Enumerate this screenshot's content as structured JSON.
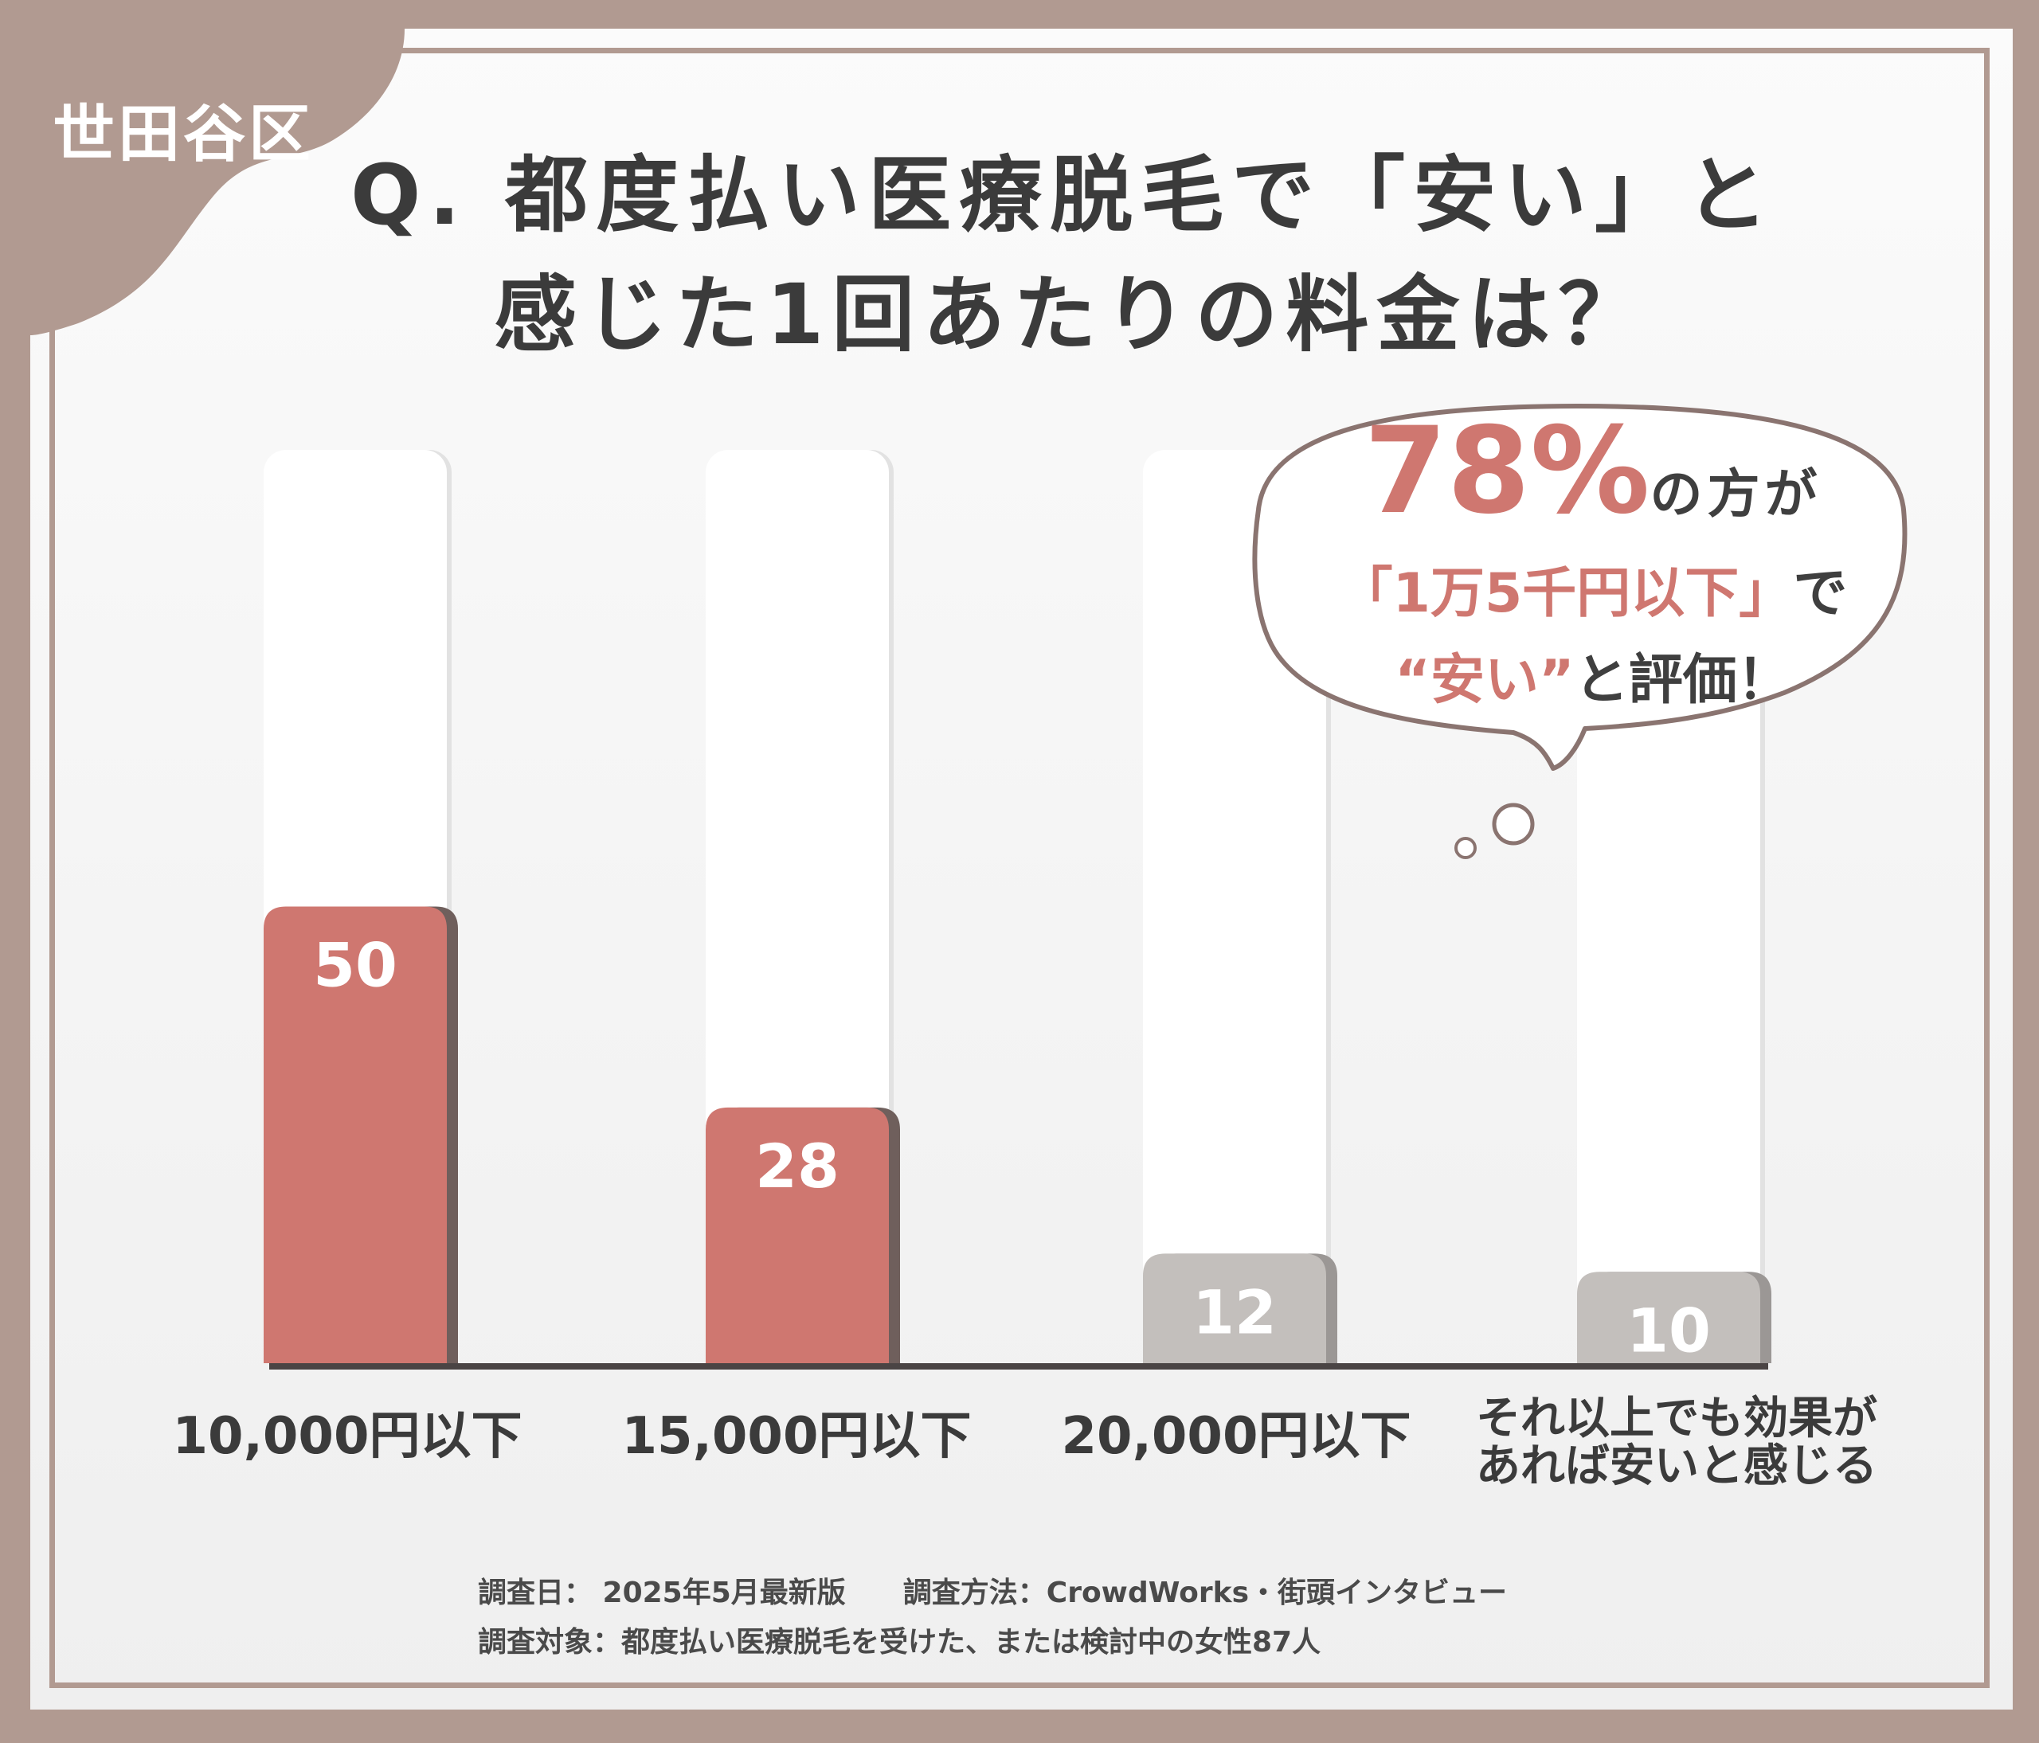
{
  "area_label": "世田谷区",
  "title": {
    "line1": "Q. 都度払い医療脱毛で「安い」と",
    "line2": "感じた1回あたりの料金は？"
  },
  "callout": {
    "pct": "78%",
    "pct_suffix": "の方が",
    "line2_accent": "「1万5千円以下」",
    "line2_rest": "で",
    "line3_accent": "“安い”",
    "line3_rest": "と評価！"
  },
  "colors": {
    "frame": "#b19a91",
    "highlight_bar": "#cf7770",
    "muted_bar": "#c3bfbc",
    "text": "#3b3b3b"
  },
  "chart_data": {
    "type": "bar",
    "categories": [
      "10,000円以下",
      "15,000円以下",
      "20,000円以下",
      "それ以上でも効果が あれば安いと感じる"
    ],
    "category_lines": [
      [
        "10,000円以下"
      ],
      [
        "15,000円以下"
      ],
      [
        "20,000円以下"
      ],
      [
        "それ以上でも効果が",
        "あれば安いと感じる"
      ]
    ],
    "values": [
      50,
      28,
      12,
      10
    ],
    "value_labels": [
      "50",
      "28",
      "12",
      "10"
    ],
    "highlighted": [
      true,
      true,
      false,
      false
    ],
    "ylim": [
      0,
      100
    ],
    "title": "",
    "xlabel": "",
    "ylabel": "",
    "grid": false,
    "legend": "none"
  },
  "footer": {
    "line1": "調査日： 2025年5月最新版　　調査方法：CrowdWorks・街頭インタビュー",
    "line2": "調査対象：都度払い医療脱毛を受けた、または検討中の女性87人"
  }
}
